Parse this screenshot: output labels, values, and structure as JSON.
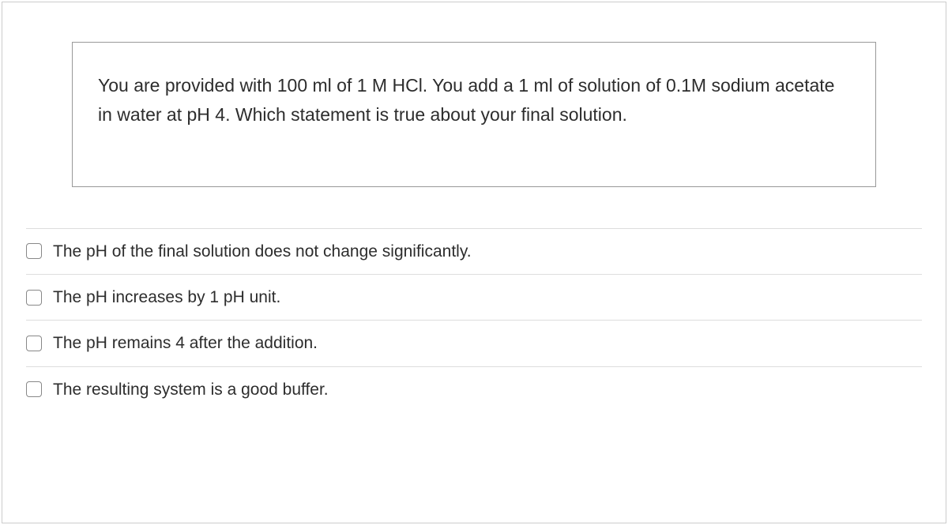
{
  "question": {
    "text": "You are provided with 100 ml of 1 M HCl. You add a 1 ml of solution of 0.1M sodium acetate in water at pH 4. Which statement is true about your final solution."
  },
  "options": [
    {
      "label": "The pH of the final solution does not change significantly.",
      "checked": false
    },
    {
      "label": "The pH increases by 1 pH unit.",
      "checked": false
    },
    {
      "label": "The pH remains 4 after the addition.",
      "checked": false
    },
    {
      "label": "The resulting system is a good buffer.",
      "checked": false
    }
  ]
}
